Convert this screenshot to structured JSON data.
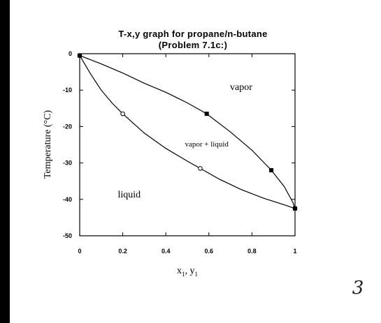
{
  "chart_data": {
    "type": "line",
    "title": [
      "T-x,y  graph  for  propane/n-butane",
      "(Problem  7.1c:)"
    ],
    "xlabel": "x",
    "xlabel_sub1": "1",
    "xlabel_sep": ", y",
    "xlabel_sub2": "1",
    "ylabel": "Temperature (°C)",
    "xlim": [
      0,
      1
    ],
    "ylim": [
      -50,
      0
    ],
    "x_ticks": [
      0,
      0.2,
      0.4,
      0.6,
      0.8,
      1
    ],
    "x_tick_labels": [
      "0",
      "0.2",
      "0.4",
      "0.6",
      "0.8",
      "1"
    ],
    "y_ticks": [
      0,
      -10,
      -20,
      -30,
      -40,
      -50
    ],
    "y_tick_labels": [
      "0",
      "-10",
      "-20",
      "-30",
      "-40",
      "-50"
    ],
    "grid": false,
    "series": [
      {
        "role": "bubble point (liquid) curve",
        "marker": "open-circle",
        "points": [
          [
            0,
            -0.5
          ],
          [
            0.2,
            -16.5
          ],
          [
            0.56,
            -31.5
          ],
          [
            1,
            -42.5
          ]
        ],
        "curve": [
          [
            0,
            -0.5
          ],
          [
            0.05,
            -5.5
          ],
          [
            0.1,
            -10
          ],
          [
            0.15,
            -13.5
          ],
          [
            0.2,
            -16.5
          ],
          [
            0.3,
            -21.8
          ],
          [
            0.4,
            -26
          ],
          [
            0.5,
            -29.5
          ],
          [
            0.56,
            -31.5
          ],
          [
            0.65,
            -34.5
          ],
          [
            0.75,
            -37.3
          ],
          [
            0.85,
            -39.6
          ],
          [
            0.95,
            -41.5
          ],
          [
            1,
            -42.5
          ]
        ]
      },
      {
        "role": "dew point (vapor) curve",
        "marker": "filled-square",
        "points": [
          [
            0,
            -0.5
          ],
          [
            0.59,
            -16.5
          ],
          [
            0.89,
            -32
          ],
          [
            1,
            -42.5
          ]
        ],
        "curve": [
          [
            0,
            -0.5
          ],
          [
            0.1,
            -2.8
          ],
          [
            0.2,
            -5.3
          ],
          [
            0.3,
            -8.1
          ],
          [
            0.4,
            -10.6
          ],
          [
            0.5,
            -13.5
          ],
          [
            0.59,
            -16.5
          ],
          [
            0.7,
            -21.5
          ],
          [
            0.8,
            -26.5
          ],
          [
            0.89,
            -32
          ],
          [
            0.95,
            -36.5
          ],
          [
            0.99,
            -40.8
          ],
          [
            1,
            -42.5
          ]
        ]
      }
    ],
    "annotations": [
      {
        "text": "vapor",
        "x": 0.75,
        "y": -10
      },
      {
        "text": "vapor + liquid",
        "x": 0.59,
        "y": -25.5
      },
      {
        "text": "liquid",
        "x": 0.23,
        "y": -39.5
      }
    ]
  },
  "page_number": "3"
}
